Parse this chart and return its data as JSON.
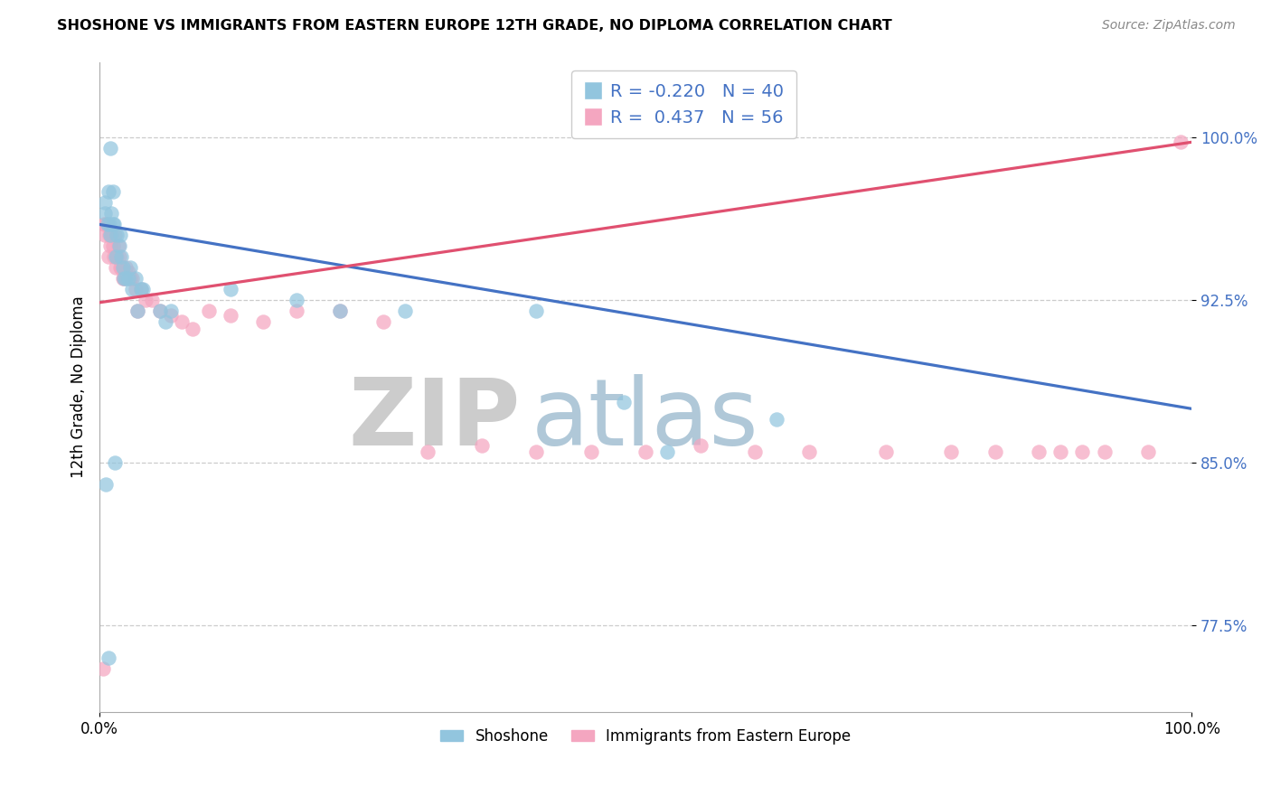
{
  "title": "SHOSHONE VS IMMIGRANTS FROM EASTERN EUROPE 12TH GRADE, NO DIPLOMA CORRELATION CHART",
  "source": "Source: ZipAtlas.com",
  "ylabel": "12th Grade, No Diploma",
  "xlim": [
    0.0,
    1.0
  ],
  "ylim": [
    0.735,
    1.035
  ],
  "yticks": [
    0.775,
    0.85,
    0.925,
    1.0
  ],
  "ytick_labels": [
    "77.5%",
    "85.0%",
    "92.5%",
    "100.0%"
  ],
  "xticks": [
    0.0,
    1.0
  ],
  "xtick_labels": [
    "0.0%",
    "100.0%"
  ],
  "legend1_R": "-0.220",
  "legend1_N": "40",
  "legend2_R": "0.437",
  "legend2_N": "56",
  "shoshone_color": "#92c5de",
  "immigrant_color": "#f4a6c0",
  "shoshone_line_color": "#4472c4",
  "immigrant_line_color": "#e05070",
  "shoshone_x": [
    0.005,
    0.005,
    0.007,
    0.008,
    0.009,
    0.01,
    0.011,
    0.012,
    0.012,
    0.013,
    0.015,
    0.016,
    0.018,
    0.019,
    0.02,
    0.021,
    0.022,
    0.024,
    0.026,
    0.028,
    0.03,
    0.033,
    0.035,
    0.038,
    0.04,
    0.055,
    0.06,
    0.065,
    0.12,
    0.18,
    0.22,
    0.28,
    0.4,
    0.48,
    0.52,
    0.62,
    0.01,
    0.006,
    0.008,
    0.014
  ],
  "shoshone_y": [
    0.965,
    0.97,
    0.96,
    0.975,
    0.96,
    0.955,
    0.965,
    0.96,
    0.975,
    0.96,
    0.945,
    0.955,
    0.95,
    0.955,
    0.945,
    0.94,
    0.935,
    0.935,
    0.935,
    0.94,
    0.93,
    0.935,
    0.92,
    0.93,
    0.93,
    0.92,
    0.915,
    0.92,
    0.93,
    0.925,
    0.92,
    0.92,
    0.92,
    0.878,
    0.855,
    0.87,
    0.995,
    0.84,
    0.76,
    0.85
  ],
  "immigrant_x": [
    0.004,
    0.005,
    0.006,
    0.007,
    0.008,
    0.009,
    0.01,
    0.011,
    0.012,
    0.013,
    0.014,
    0.015,
    0.016,
    0.017,
    0.018,
    0.019,
    0.02,
    0.021,
    0.022,
    0.024,
    0.026,
    0.028,
    0.03,
    0.033,
    0.035,
    0.038,
    0.042,
    0.048,
    0.055,
    0.065,
    0.075,
    0.085,
    0.1,
    0.12,
    0.15,
    0.18,
    0.22,
    0.26,
    0.3,
    0.35,
    0.4,
    0.45,
    0.5,
    0.55,
    0.6,
    0.65,
    0.72,
    0.78,
    0.82,
    0.86,
    0.88,
    0.9,
    0.92,
    0.96,
    0.99,
    0.003
  ],
  "immigrant_y": [
    0.96,
    0.955,
    0.96,
    0.96,
    0.945,
    0.955,
    0.95,
    0.955,
    0.95,
    0.945,
    0.955,
    0.94,
    0.945,
    0.95,
    0.945,
    0.94,
    0.94,
    0.935,
    0.935,
    0.94,
    0.938,
    0.935,
    0.935,
    0.93,
    0.92,
    0.93,
    0.925,
    0.925,
    0.92,
    0.918,
    0.915,
    0.912,
    0.92,
    0.918,
    0.915,
    0.92,
    0.92,
    0.915,
    0.855,
    0.858,
    0.855,
    0.855,
    0.855,
    0.858,
    0.855,
    0.855,
    0.855,
    0.855,
    0.855,
    0.855,
    0.855,
    0.855,
    0.855,
    0.855,
    0.998,
    0.755
  ]
}
